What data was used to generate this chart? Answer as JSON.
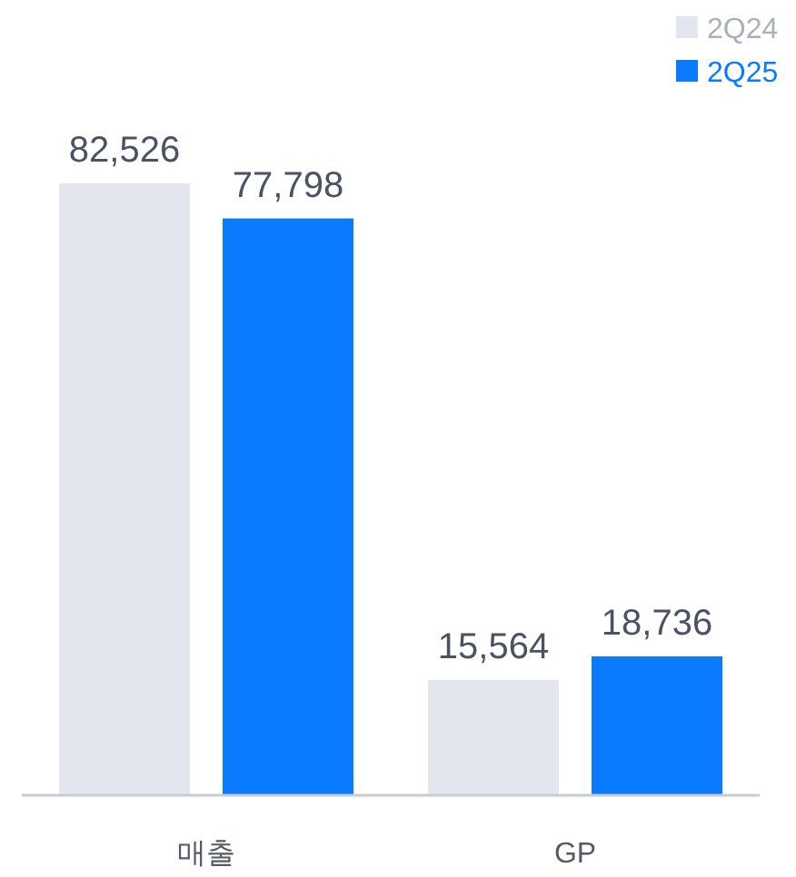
{
  "chart_data": {
    "type": "bar",
    "categories": [
      "매출",
      "GP"
    ],
    "series": [
      {
        "name": "2Q24",
        "color": "#e3e6ee",
        "values": [
          82526,
          15564
        ],
        "value_labels": [
          "82,526",
          "15,564"
        ]
      },
      {
        "name": "2Q25",
        "color": "#0a7bff",
        "values": [
          77798,
          18736
        ],
        "value_labels": [
          "77,798",
          "18,736"
        ]
      }
    ],
    "legend": "top right"
  }
}
